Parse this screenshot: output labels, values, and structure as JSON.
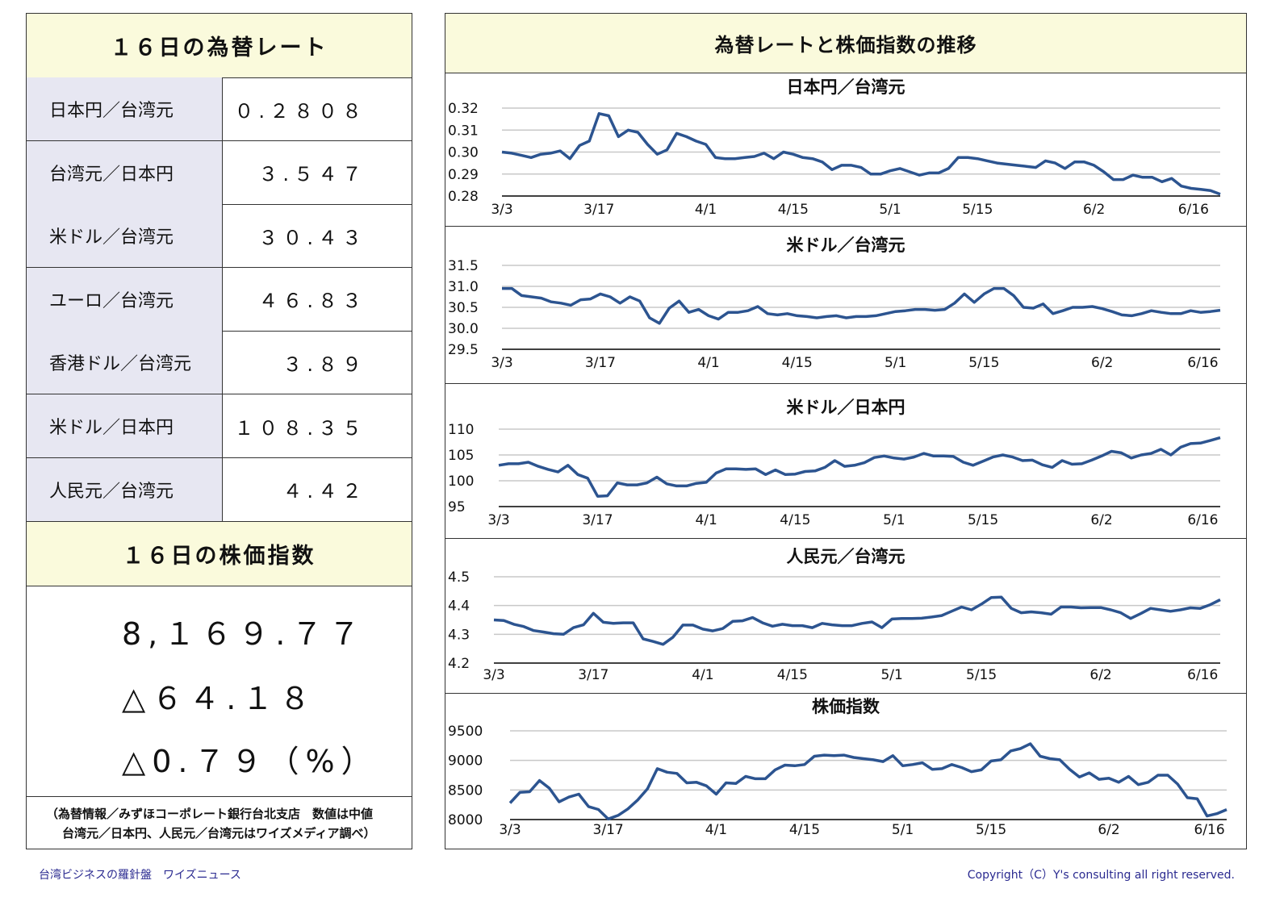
{
  "left_panel": {
    "rate_title": "１６日の為替レート",
    "rates": [
      {
        "label": "日本円／台湾元",
        "value": "０.２８０８"
      },
      {
        "label": "台湾元／日本円",
        "value": "３.５４７"
      },
      {
        "label": "米ドル／台湾元",
        "value": "３０.４３"
      },
      {
        "label": "ユーロ／台湾元",
        "value": "４６.８３"
      },
      {
        "label": "香港ドル／台湾元",
        "value": "３.８９"
      },
      {
        "label": "米ドル／日本円",
        "value": "１０８.３５"
      },
      {
        "label": "人民元／台湾元",
        "value": "４.４２"
      }
    ],
    "stock_title": "１６日の株価指数",
    "stock_value": "8,１６９.７７",
    "stock_change": "△６４.１８",
    "stock_pct": "△0.７９（%）",
    "note_line1": "（為替情報／みずほコーポレート銀行台北支店　数値は中値",
    "note_line2": "台湾元／日本円、人民元／台湾元はワイズメディア調べ）"
  },
  "right_panel": {
    "title": "為替レートと株価指数の推移"
  },
  "footer": {
    "left": "台湾ビジネスの羅針盤　ワイズニュース",
    "right": "Copyright（C）Y's consulting all right reserved."
  },
  "colors": {
    "line": "#2c5490",
    "header_bg": "#fafadc",
    "label_bg": "#e7e7f2",
    "footer_text": "#2a2a90"
  },
  "chart_data": [
    {
      "type": "line",
      "title": "日本円／台湾元",
      "ylim": [
        0.28,
        0.32
      ],
      "yticks": [
        "0.32",
        "0.31",
        "0.30",
        "0.29",
        "0.28"
      ],
      "ytick_values": [
        0.32,
        0.31,
        0.3,
        0.29,
        0.28
      ],
      "xticks": [
        "3/3",
        "3/17",
        "4/1",
        "4/15",
        "5/1",
        "5/15",
        "6/2",
        "6/16"
      ],
      "xtick_index": [
        0,
        10,
        21,
        30,
        40,
        49,
        61,
        71
      ],
      "grid": true,
      "values": [
        0.3,
        0.2995,
        0.2985,
        0.2975,
        0.299,
        0.2995,
        0.3005,
        0.297,
        0.303,
        0.305,
        0.3175,
        0.3165,
        0.307,
        0.31,
        0.309,
        0.3035,
        0.299,
        0.301,
        0.3085,
        0.307,
        0.305,
        0.3035,
        0.2975,
        0.297,
        0.297,
        0.2975,
        0.298,
        0.2995,
        0.297,
        0.3,
        0.299,
        0.2975,
        0.297,
        0.2955,
        0.292,
        0.294,
        0.294,
        0.293,
        0.29,
        0.29,
        0.2915,
        0.2925,
        0.291,
        0.2895,
        0.2905,
        0.2905,
        0.2925,
        0.2975,
        0.2975,
        0.297,
        0.296,
        0.295,
        0.2945,
        0.294,
        0.2935,
        0.293,
        0.296,
        0.295,
        0.2925,
        0.2955,
        0.2955,
        0.294,
        0.291,
        0.2875,
        0.2875,
        0.2895,
        0.2885,
        0.2885,
        0.2865,
        0.288,
        0.2845,
        0.2835,
        0.283,
        0.2825,
        0.2808
      ]
    },
    {
      "type": "line",
      "title": "米ドル／台湾元",
      "ylim": [
        29.5,
        31.5
      ],
      "yticks": [
        "31.5",
        "31.0",
        "30.5",
        "30.0",
        "29.5"
      ],
      "ytick_values": [
        31.5,
        31.0,
        30.5,
        30.0,
        29.5
      ],
      "xticks": [
        "3/3",
        "3/17",
        "4/1",
        "4/15",
        "5/1",
        "5/15",
        "6/2",
        "6/16"
      ],
      "xtick_index": [
        0,
        10,
        21,
        30,
        40,
        49,
        61,
        71
      ],
      "grid": true,
      "values": [
        30.95,
        30.95,
        30.78,
        30.75,
        30.72,
        30.63,
        30.6,
        30.55,
        30.68,
        30.7,
        30.82,
        30.75,
        30.6,
        30.75,
        30.65,
        30.25,
        30.12,
        30.48,
        30.65,
        30.38,
        30.45,
        30.3,
        30.22,
        30.38,
        30.38,
        30.42,
        30.52,
        30.35,
        30.32,
        30.35,
        30.3,
        30.28,
        30.25,
        30.28,
        30.3,
        30.25,
        30.28,
        30.28,
        30.3,
        30.35,
        30.4,
        30.42,
        30.45,
        30.45,
        30.43,
        30.45,
        30.6,
        30.82,
        30.62,
        30.82,
        30.95,
        30.95,
        30.78,
        30.5,
        30.48,
        30.58,
        30.35,
        30.42,
        30.5,
        30.5,
        30.52,
        30.47,
        30.4,
        30.32,
        30.3,
        30.35,
        30.42,
        30.38,
        30.35,
        30.35,
        30.42,
        30.38,
        30.4,
        30.43
      ]
    },
    {
      "type": "line",
      "title": "米ドル／日本円",
      "ylim": [
        95,
        110
      ],
      "yticks": [
        "110",
        "105",
        "100",
        "95"
      ],
      "ytick_values": [
        110,
        105,
        100,
        95
      ],
      "xticks": [
        "3/3",
        "3/17",
        "4/1",
        "4/15",
        "5/1",
        "5/15",
        "6/2",
        "6/16"
      ],
      "xtick_index": [
        0,
        10,
        21,
        30,
        40,
        49,
        61,
        71
      ],
      "grid": true,
      "values": [
        103.0,
        103.3,
        103.3,
        103.6,
        102.8,
        102.2,
        101.7,
        103.0,
        101.2,
        100.5,
        97.0,
        97.1,
        99.6,
        99.2,
        99.2,
        99.6,
        100.7,
        99.4,
        99.0,
        99.0,
        99.5,
        99.7,
        101.5,
        102.3,
        102.3,
        102.2,
        102.3,
        101.2,
        102.1,
        101.2,
        101.3,
        101.8,
        101.9,
        102.6,
        103.9,
        102.8,
        103.0,
        103.5,
        104.5,
        104.8,
        104.4,
        104.2,
        104.6,
        105.3,
        104.8,
        104.8,
        104.7,
        103.6,
        103.0,
        103.8,
        104.6,
        105.0,
        104.6,
        103.9,
        104.0,
        103.1,
        102.6,
        103.9,
        103.2,
        103.3,
        104.0,
        104.8,
        105.7,
        105.4,
        104.4,
        105.0,
        105.3,
        106.1,
        105.0,
        106.5,
        107.2,
        107.3,
        107.8,
        108.35
      ]
    },
    {
      "type": "line",
      "title": "人民元／台湾元",
      "ylim": [
        4.2,
        4.5
      ],
      "yticks": [
        "4.5",
        "4.4",
        "4.3",
        "4.2"
      ],
      "ytick_values": [
        4.5,
        4.4,
        4.3,
        4.2
      ],
      "xticks": [
        "3/3",
        "3/17",
        "4/1",
        "4/15",
        "5/1",
        "5/15",
        "6/2",
        "6/16"
      ],
      "xtick_index": [
        0,
        10,
        21,
        30,
        40,
        49,
        61,
        71
      ],
      "grid": true,
      "values": [
        4.35,
        4.348,
        4.335,
        4.327,
        4.313,
        4.308,
        4.302,
        4.3,
        4.323,
        4.333,
        4.373,
        4.342,
        4.338,
        4.34,
        4.34,
        4.284,
        4.275,
        4.265,
        4.29,
        4.332,
        4.332,
        4.318,
        4.312,
        4.32,
        4.345,
        4.347,
        4.358,
        4.34,
        4.328,
        4.335,
        4.33,
        4.33,
        4.323,
        4.338,
        4.333,
        4.33,
        4.33,
        4.338,
        4.343,
        4.323,
        4.353,
        4.355,
        4.355,
        4.356,
        4.36,
        4.365,
        4.38,
        4.395,
        4.385,
        4.405,
        4.428,
        4.429,
        4.39,
        4.375,
        4.378,
        4.375,
        4.37,
        4.395,
        4.395,
        4.392,
        4.393,
        4.393,
        4.385,
        4.375,
        4.355,
        4.372,
        4.39,
        4.385,
        4.38,
        4.385,
        4.392,
        4.39,
        4.403,
        4.42
      ]
    },
    {
      "type": "line",
      "title": "株価指数",
      "ylim": [
        8000,
        9500
      ],
      "yticks": [
        "9500",
        "9000",
        "8500",
        "8000"
      ],
      "ytick_values": [
        9500,
        9000,
        8500,
        8000
      ],
      "xticks": [
        "3/3",
        "3/17",
        "4/1",
        "4/15",
        "5/1",
        "5/15",
        "6/2",
        "6/16"
      ],
      "xtick_index": [
        0,
        10,
        21,
        30,
        40,
        49,
        61,
        71
      ],
      "grid": true,
      "values": [
        8280,
        8460,
        8470,
        8660,
        8530,
        8300,
        8380,
        8430,
        8220,
        8170,
        8010,
        8070,
        8180,
        8330,
        8520,
        8860,
        8800,
        8780,
        8620,
        8630,
        8570,
        8430,
        8620,
        8610,
        8730,
        8690,
        8690,
        8840,
        8920,
        8910,
        8930,
        9070,
        9090,
        9080,
        9090,
        9050,
        9030,
        9010,
        8980,
        9080,
        8910,
        8930,
        8960,
        8850,
        8860,
        8930,
        8880,
        8810,
        8840,
        8990,
        9010,
        9160,
        9200,
        9280,
        9070,
        9030,
        9010,
        8850,
        8720,
        8790,
        8680,
        8700,
        8630,
        8730,
        8590,
        8630,
        8750,
        8750,
        8600,
        8370,
        8350,
        8060,
        8100,
        8169.77
      ]
    }
  ]
}
